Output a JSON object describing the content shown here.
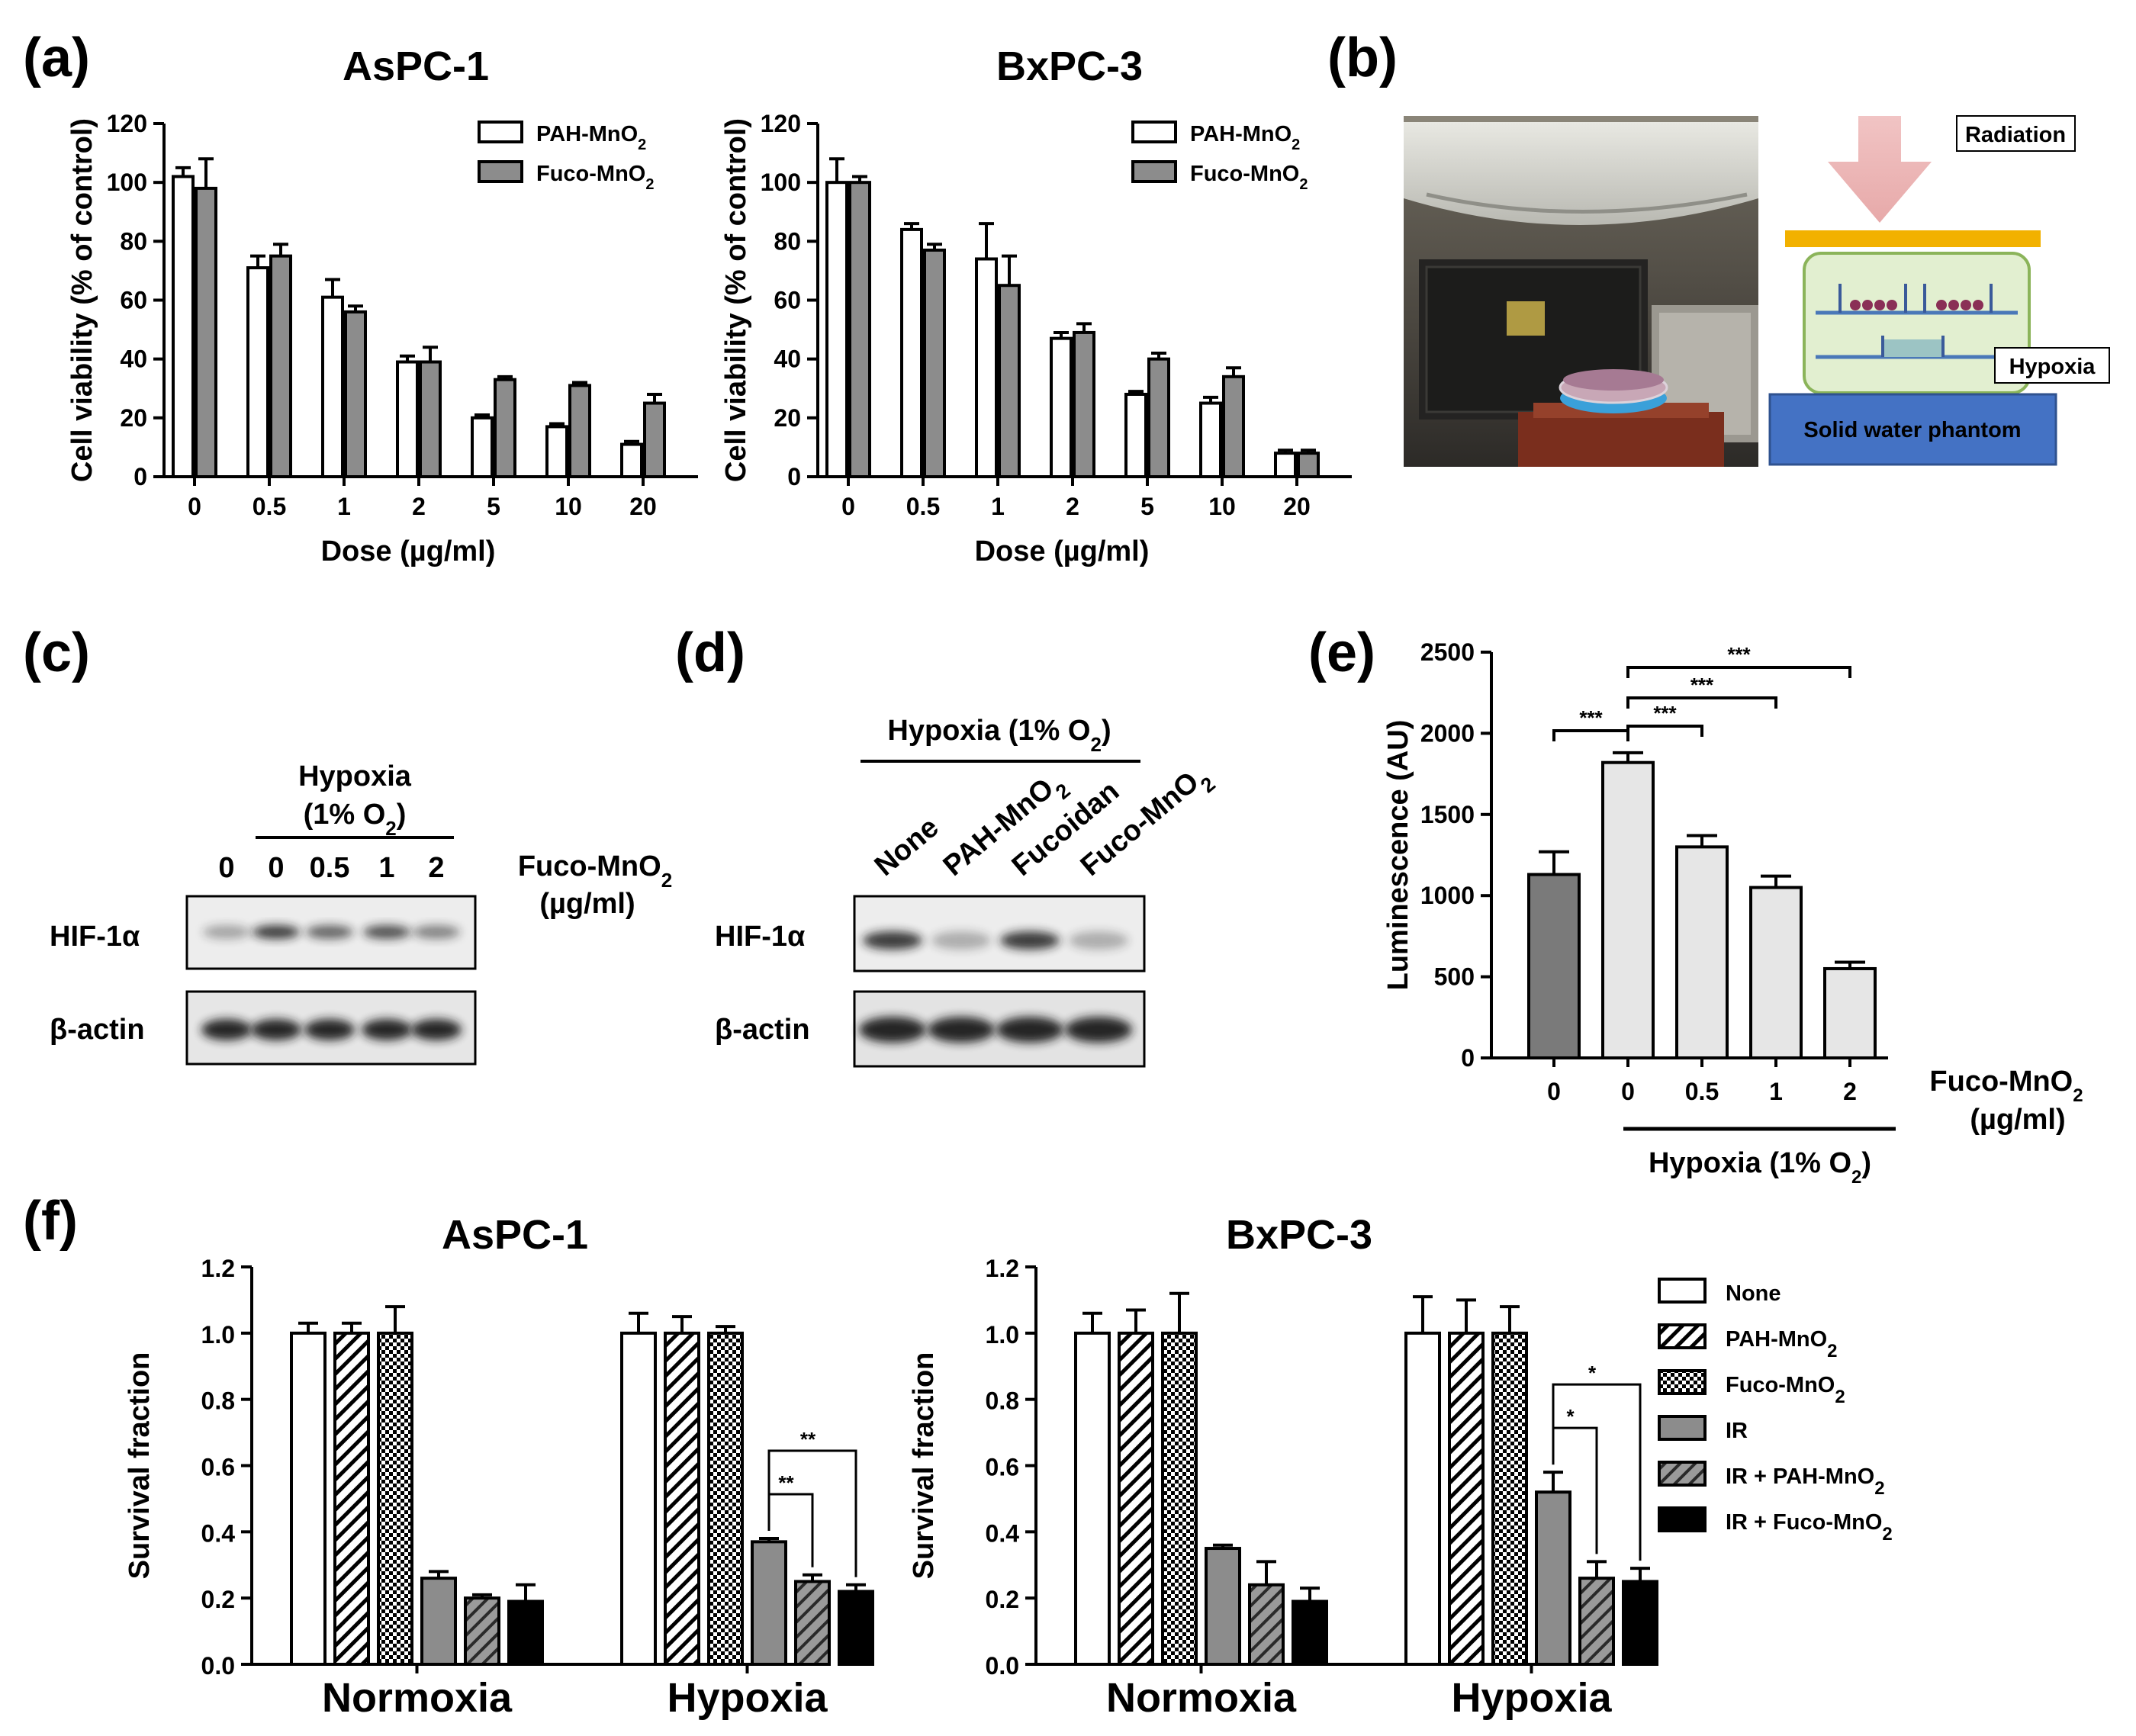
{
  "colors": {
    "white": "#ffffff",
    "gray": "#8c8c8c",
    "light": "#e6e6e6",
    "dark": "#7a7a7a",
    "black": "#000000"
  },
  "panel_labels": {
    "a": "(a)",
    "b": "(b)",
    "c": "(c)",
    "d": "(d)",
    "e": "(e)",
    "f": "(f)"
  },
  "panel_b": {
    "labels": {
      "radiation": "Radiation",
      "hypoxia": "Hypoxia",
      "phantom": "Solid water phantom"
    }
  },
  "panel_c": {
    "header": "Hypoxia",
    "header_o2": "(1% O",
    "header_o2_sub": "2",
    "header_o2_end": ")",
    "lanes": [
      "0",
      "0",
      "0.5",
      "1",
      "2"
    ],
    "side_label": "Fuco-MnO",
    "side_label_sub": "2",
    "side_label_unit": "(µg/ml)",
    "rows": [
      "HIF-1α",
      "β-actin"
    ]
  },
  "panel_d": {
    "header": "Hypoxia (1% O",
    "header_sub": "2",
    "header_end": ")",
    "lanes": [
      "None",
      "PAH-MnO",
      "Fucoidan",
      "Fuco-MnO"
    ],
    "lane_subs": [
      "",
      "2",
      "",
      "2"
    ],
    "rows": [
      "HIF-1α",
      "β-actin"
    ]
  },
  "chart_data": [
    {
      "id": "a1",
      "type": "bar",
      "title": "AsPC-1",
      "xlabel": "Dose (µg/ml)",
      "ylabel": "Cell viability (% of control)",
      "ylim": [
        0,
        120
      ],
      "yticks": [
        0,
        20,
        40,
        60,
        80,
        100,
        120
      ],
      "categories": [
        "0",
        "0.5",
        "1",
        "2",
        "5",
        "10",
        "20"
      ],
      "series": [
        {
          "name": "PAH-MnO",
          "sub": "2",
          "style": "white",
          "values": [
            102,
            71,
            61,
            39,
            20,
            17,
            11
          ],
          "errors": [
            3,
            4,
            6,
            2,
            1,
            1,
            1
          ]
        },
        {
          "name": "Fuco-MnO",
          "sub": "2",
          "style": "gray",
          "values": [
            98,
            75,
            56,
            39,
            33,
            31,
            25
          ],
          "errors": [
            10,
            4,
            2,
            5,
            1,
            1,
            3
          ]
        }
      ]
    },
    {
      "id": "a2",
      "type": "bar",
      "title": "BxPC-3",
      "xlabel": "Dose (µg/ml)",
      "ylabel": "Cell viability (% of control)",
      "ylim": [
        0,
        120
      ],
      "yticks": [
        0,
        20,
        40,
        60,
        80,
        100,
        120
      ],
      "categories": [
        "0",
        "0.5",
        "1",
        "2",
        "5",
        "10",
        "20"
      ],
      "series": [
        {
          "name": "PAH-MnO",
          "sub": "2",
          "style": "white",
          "values": [
            100,
            84,
            74,
            47,
            28,
            25,
            8
          ],
          "errors": [
            8,
            2,
            12,
            2,
            1,
            2,
            1
          ]
        },
        {
          "name": "Fuco-MnO",
          "sub": "2",
          "style": "gray",
          "values": [
            100,
            77,
            65,
            49,
            40,
            34,
            8
          ],
          "errors": [
            2,
            2,
            10,
            3,
            2,
            3,
            1
          ]
        }
      ]
    },
    {
      "id": "e",
      "type": "bar",
      "ylabel": "Luminescence (AU)",
      "ylim": [
        0,
        2500
      ],
      "yticks": [
        0,
        500,
        1000,
        1500,
        2000,
        2500
      ],
      "categories": [
        "0",
        "0",
        "0.5",
        "1",
        "2"
      ],
      "values": [
        1130,
        1820,
        1300,
        1050,
        550
      ],
      "errors": [
        140,
        60,
        70,
        70,
        40
      ],
      "styles": [
        "dark",
        "light",
        "light",
        "light",
        "light"
      ],
      "right_label": "Fuco-MnO",
      "right_label_sub": "2",
      "right_label_unit": "(µg/ml)",
      "group_label": "Hypoxia (1% O",
      "group_label_sub": "2",
      "group_label_end": ")",
      "significance": [
        {
          "from": 0,
          "to": 1,
          "label": "***"
        },
        {
          "from": 1,
          "to": 2,
          "label": "***"
        },
        {
          "from": 1,
          "to": 3,
          "label": "***"
        },
        {
          "from": 1,
          "to": 4,
          "label": "***"
        }
      ]
    },
    {
      "id": "f1",
      "type": "grouped_bar",
      "title": "AsPC-1",
      "ylabel": "Survival fraction",
      "ylim": [
        0,
        1.2
      ],
      "yticks": [
        "0.0",
        "0.2",
        "0.4",
        "0.6",
        "0.8",
        "1.0",
        "1.2"
      ],
      "groups": [
        "Normoxia",
        "Hypoxia"
      ],
      "series_names": [
        "None",
        "PAH-MnO",
        "Fuco-MnO",
        "IR",
        "IR + PAH-MnO",
        "IR + Fuco-MnO"
      ],
      "values": [
        [
          1.0,
          1.0,
          1.0,
          0.26,
          0.2,
          0.19
        ],
        [
          1.0,
          1.0,
          1.0,
          0.37,
          0.25,
          0.22
        ]
      ],
      "errors": [
        [
          0.03,
          0.03,
          0.08,
          0.02,
          0.01,
          0.05
        ],
        [
          0.06,
          0.05,
          0.02,
          0.01,
          0.02,
          0.02
        ]
      ],
      "significance": [
        {
          "group": 1,
          "from": 3,
          "to": 4,
          "label": "**"
        },
        {
          "group": 1,
          "from": 3,
          "to": 5,
          "label": "**"
        }
      ]
    },
    {
      "id": "f2",
      "type": "grouped_bar",
      "title": "BxPC-3",
      "ylabel": "Survival fraction",
      "ylim": [
        0,
        1.2
      ],
      "yticks": [
        "0.0",
        "0.2",
        "0.4",
        "0.6",
        "0.8",
        "1.0",
        "1.2"
      ],
      "groups": [
        "Normoxia",
        "Hypoxia"
      ],
      "series_names": [
        "None",
        "PAH-MnO",
        "Fuco-MnO",
        "IR",
        "IR + PAH-MnO",
        "IR + Fuco-MnO"
      ],
      "values": [
        [
          1.0,
          1.0,
          1.0,
          0.35,
          0.24,
          0.19
        ],
        [
          1.0,
          1.0,
          1.0,
          0.52,
          0.26,
          0.25
        ]
      ],
      "errors": [
        [
          0.06,
          0.07,
          0.12,
          0.01,
          0.07,
          0.04
        ],
        [
          0.11,
          0.1,
          0.08,
          0.06,
          0.05,
          0.04
        ]
      ],
      "significance": [
        {
          "group": 1,
          "from": 3,
          "to": 4,
          "label": "*"
        },
        {
          "group": 1,
          "from": 3,
          "to": 5,
          "label": "*"
        }
      ]
    }
  ],
  "legend_f": [
    {
      "label": "None",
      "sub": "",
      "style": "white"
    },
    {
      "label": "PAH-MnO",
      "sub": "2",
      "style": "hatch"
    },
    {
      "label": "Fuco-MnO",
      "sub": "2",
      "style": "check"
    },
    {
      "label": "IR",
      "sub": "",
      "style": "gray"
    },
    {
      "label": "IR + PAH-MnO",
      "sub": "2",
      "style": "grayhatch"
    },
    {
      "label": "IR + Fuco-MnO",
      "sub": "2",
      "style": "black"
    }
  ]
}
